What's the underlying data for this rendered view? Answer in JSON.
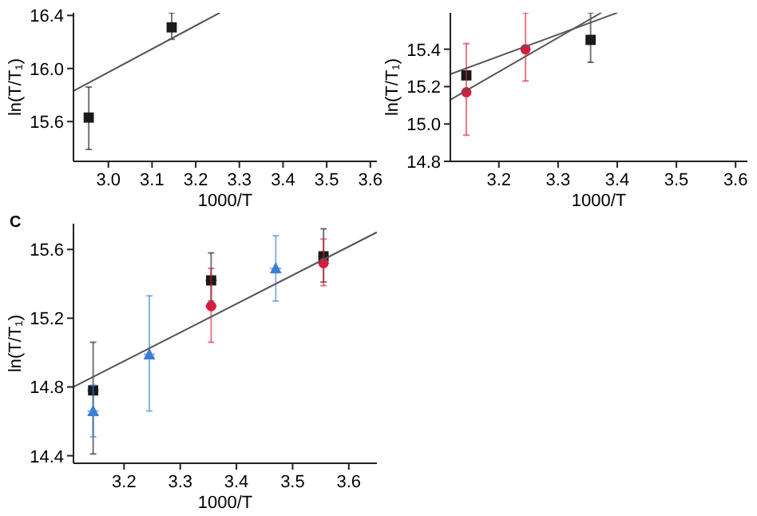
{
  "chart_data": [
    {
      "type": "scatter",
      "xlabel": "1000/T",
      "ylabel": "ln(T/T₁)",
      "xlim": [
        2.92,
        3.615
      ],
      "ylim": [
        15.3,
        16.42
      ],
      "xticks": [
        {
          "value": 3,
          "label": "3.0"
        },
        3.1,
        3.2,
        3.3,
        3.4,
        3.5,
        3.6
      ],
      "yticks": [
        15.6,
        {
          "value": 16,
          "label": "16.0"
        },
        16.4
      ],
      "series": [
        {
          "color": "#1a1a1a",
          "marker": "square",
          "x": [
            2.955,
            3.145
          ],
          "values": [
            15.63,
            16.31
          ],
          "errors": [
            [
              15.39,
              15.86
            ],
            [
              16.22,
              16.42
            ]
          ]
        },
        {
          "type": "line",
          "color": "#555555",
          "x": [
            2.92,
            3.255
          ],
          "values": [
            15.83,
            16.42
          ]
        }
      ]
    },
    {
      "type": "scatter",
      "xlabel": "1000/T",
      "ylabel": "ln(T/T₁)",
      "xlim": [
        3.118,
        3.62
      ],
      "ylim": [
        14.8,
        15.595
      ],
      "xticks": [
        3.2,
        3.3,
        3.4,
        3.5,
        3.6
      ],
      "yticks": [
        14.8,
        {
          "value": 15,
          "label": "15.0"
        },
        15.2,
        15.4
      ],
      "series": [
        {
          "color": "#1a1a1a",
          "marker": "square",
          "x": [
            3.145,
            3.355
          ],
          "values": [
            15.26,
            15.45
          ],
          "errors": [
            null,
            [
              15.33,
              15.595
            ]
          ]
        },
        {
          "color": "#d81b3c",
          "marker": "circle",
          "x": [
            3.145,
            3.245
          ],
          "values": [
            15.17,
            15.4
          ],
          "errors": [
            [
              14.94,
              15.43
            ],
            [
              15.23,
              15.595
            ]
          ]
        },
        {
          "type": "line",
          "color": "#555555",
          "x": [
            3.118,
            3.4
          ],
          "values": [
            15.267,
            15.595
          ]
        },
        {
          "type": "line",
          "color": "#555555",
          "x": [
            3.118,
            3.373
          ],
          "values": [
            15.13,
            15.595
          ]
        }
      ]
    },
    {
      "type": "scatter",
      "title": "C",
      "xlabel": "1000/T",
      "ylabel": "ln(T/T₁)",
      "xlim": [
        3.11,
        3.65
      ],
      "ylim": [
        14.356,
        15.75
      ],
      "xticks": [
        3.2,
        3.3,
        3.4,
        3.5,
        3.6
      ],
      "yticks": [
        14.4,
        14.8,
        15.2,
        15.6
      ],
      "series": [
        {
          "color": "#1a1a1a",
          "marker": "square",
          "x": [
            3.145,
            3.355,
            3.555
          ],
          "values": [
            14.78,
            15.42,
            15.56
          ],
          "errors": [
            [
              14.41,
              15.06
            ],
            [
              15.3,
              15.58
            ],
            [
              15.41,
              15.72
            ]
          ],
          "xerrors": [
            0.01,
            0.01,
            0.01
          ]
        },
        {
          "color": "#d81b3c",
          "marker": "circle",
          "x": [
            3.355,
            3.555
          ],
          "values": [
            15.27,
            15.52
          ],
          "errors": [
            [
              15.06,
              15.49
            ],
            [
              15.39,
              15.66
            ]
          ],
          "xerrors": [
            0.01,
            0.01
          ]
        },
        {
          "color": "#3a7fd5",
          "marker": "triangle",
          "x": [
            3.145,
            3.245,
            3.47
          ],
          "values": [
            14.66,
            14.99,
            15.49
          ],
          "errors": [
            [
              14.51,
              14.81
            ],
            [
              14.66,
              15.33
            ],
            [
              15.3,
              15.68
            ]
          ],
          "xerrors": [
            0.01,
            0.01,
            0.01
          ]
        },
        {
          "type": "line",
          "color": "#555555",
          "x": [
            3.11,
            3.65
          ],
          "values": [
            14.8,
            15.7
          ]
        }
      ]
    }
  ]
}
